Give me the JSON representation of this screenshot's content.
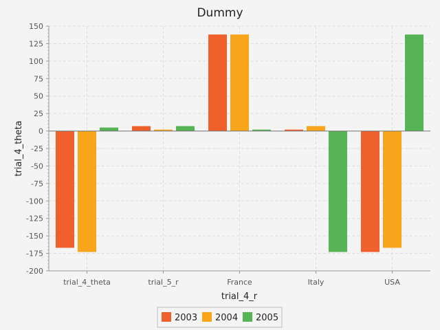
{
  "chart_data": {
    "type": "bar",
    "title": "Dummy",
    "xlabel": "trial_4_r",
    "ylabel": "trial_4_theta",
    "categories": [
      "trial_4_theta",
      "trial_5_r",
      "France",
      "Italy",
      "USA"
    ],
    "series": [
      {
        "name": "2003",
        "color": "#f0602c",
        "values": [
          -167,
          7,
          138,
          2,
          -173
        ]
      },
      {
        "name": "2004",
        "color": "#f9a51c",
        "values": [
          -173,
          2,
          138,
          7,
          -167
        ]
      },
      {
        "name": "2005",
        "color": "#56b456",
        "values": [
          5,
          7,
          2,
          -173,
          138
        ]
      }
    ],
    "ylim": [
      -200,
      150
    ],
    "yticks": [
      150,
      125,
      100,
      75,
      50,
      25,
      0,
      -25,
      -50,
      -75,
      -100,
      -125,
      -150,
      -175,
      -200
    ],
    "grid": true,
    "legend_position": "bottom"
  }
}
